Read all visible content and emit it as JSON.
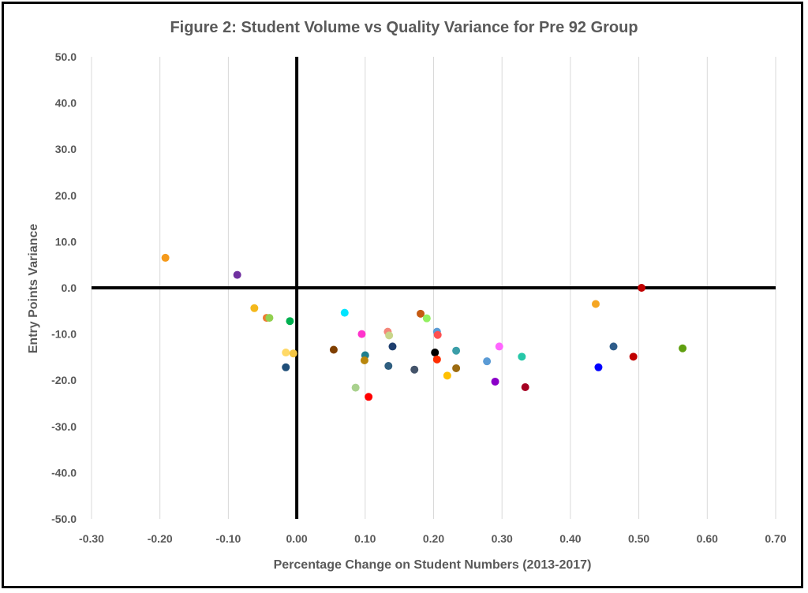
{
  "chart_data": {
    "type": "scatter",
    "title": "Figure 2: Student Volume vs Quality Variance for Pre 92 Group",
    "xlabel": "Percentage Change on Student Numbers (2013-2017)",
    "ylabel": "Entry Points Variance",
    "xlim": [
      -0.3,
      0.7
    ],
    "ylim": [
      -50,
      50
    ],
    "x_ticks": [
      "-0.30",
      "-0.20",
      "-0.10",
      "0.00",
      "0.10",
      "0.20",
      "0.30",
      "0.40",
      "0.50",
      "0.60",
      "0.70"
    ],
    "y_ticks": [
      "50.0",
      "40.0",
      "30.0",
      "20.0",
      "10.0",
      "0.0",
      "-10.0",
      "-20.0",
      "-30.0",
      "-40.0",
      "-50.0"
    ],
    "grid": "vertical",
    "legend": "none",
    "points": [
      {
        "x": -0.192,
        "y": 6.5,
        "color": "#f59a1b"
      },
      {
        "x": -0.087,
        "y": 2.8,
        "color": "#7030a0"
      },
      {
        "x": -0.062,
        "y": -4.4,
        "color": "#f4b81b"
      },
      {
        "x": -0.044,
        "y": -6.5,
        "color": "#ed7d31"
      },
      {
        "x": -0.04,
        "y": -6.5,
        "color": "#92d050"
      },
      {
        "x": -0.01,
        "y": -7.2,
        "color": "#00b050"
      },
      {
        "x": -0.016,
        "y": -14.0,
        "color": "#ffd966"
      },
      {
        "x": -0.005,
        "y": -14.2,
        "color": "#f4c542"
      },
      {
        "x": -0.016,
        "y": -17.2,
        "color": "#1f4e79"
      },
      {
        "x": 0.054,
        "y": -13.4,
        "color": "#7f3f00"
      },
      {
        "x": 0.07,
        "y": -5.4,
        "color": "#00e5ff"
      },
      {
        "x": 0.095,
        "y": -10.0,
        "color": "#ff33cc"
      },
      {
        "x": 0.1,
        "y": -14.6,
        "color": "#1f7f8f"
      },
      {
        "x": 0.099,
        "y": -15.7,
        "color": "#b8860b"
      },
      {
        "x": 0.086,
        "y": -21.6,
        "color": "#a9d18e"
      },
      {
        "x": 0.105,
        "y": -23.6,
        "color": "#ff0000"
      },
      {
        "x": 0.133,
        "y": -9.5,
        "color": "#f4877a"
      },
      {
        "x": 0.135,
        "y": -10.3,
        "color": "#c9d58a"
      },
      {
        "x": 0.14,
        "y": -12.7,
        "color": "#1f3f6f"
      },
      {
        "x": 0.134,
        "y": -16.9,
        "color": "#2f5f80"
      },
      {
        "x": 0.172,
        "y": -17.7,
        "color": "#44546a"
      },
      {
        "x": 0.181,
        "y": -5.6,
        "color": "#c55a11"
      },
      {
        "x": 0.19,
        "y": -6.6,
        "color": "#92f060"
      },
      {
        "x": 0.205,
        "y": -9.5,
        "color": "#5b9bd5"
      },
      {
        "x": 0.206,
        "y": -10.2,
        "color": "#ff5050"
      },
      {
        "x": 0.202,
        "y": -14.0,
        "color": "#000000"
      },
      {
        "x": 0.205,
        "y": -15.5,
        "color": "#ff2d00"
      },
      {
        "x": 0.22,
        "y": -19.0,
        "color": "#ffc000"
      },
      {
        "x": 0.233,
        "y": -13.6,
        "color": "#3b9ea8"
      },
      {
        "x": 0.233,
        "y": -17.4,
        "color": "#9c6b10"
      },
      {
        "x": 0.278,
        "y": -15.9,
        "color": "#5b9bd5"
      },
      {
        "x": 0.296,
        "y": -12.7,
        "color": "#ff66ff"
      },
      {
        "x": 0.29,
        "y": -20.3,
        "color": "#8a00c8"
      },
      {
        "x": 0.329,
        "y": -14.9,
        "color": "#26c7a8"
      },
      {
        "x": 0.334,
        "y": -21.5,
        "color": "#a50021"
      },
      {
        "x": 0.437,
        "y": -3.5,
        "color": "#f5a623"
      },
      {
        "x": 0.441,
        "y": -17.2,
        "color": "#0000ff"
      },
      {
        "x": 0.463,
        "y": -12.7,
        "color": "#2e5c8a"
      },
      {
        "x": 0.492,
        "y": -14.9,
        "color": "#c00000"
      },
      {
        "x": 0.504,
        "y": 0.0,
        "color": "#c00000"
      },
      {
        "x": 0.564,
        "y": -13.1,
        "color": "#5f9f0f"
      }
    ]
  }
}
